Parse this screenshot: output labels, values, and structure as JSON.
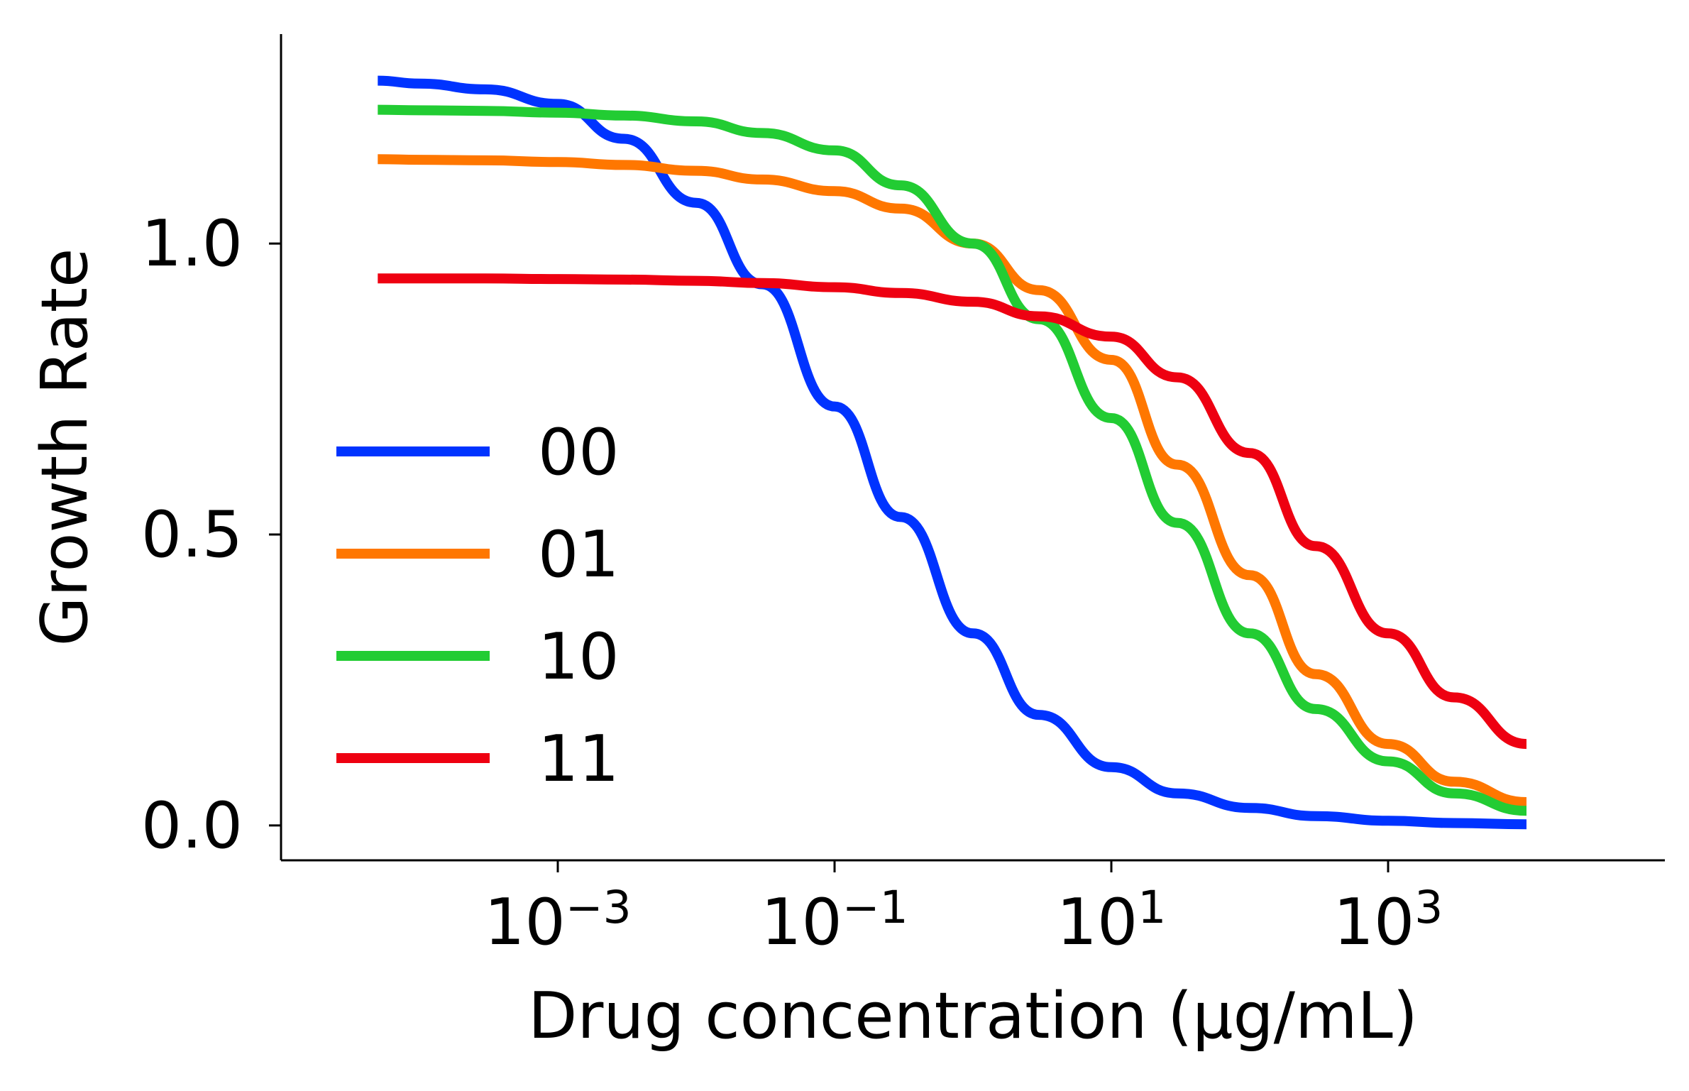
{
  "chart_data": {
    "type": "line",
    "title": "",
    "xlabel": "Drug concentration (μg/mL)",
    "ylabel": "Growth Rate",
    "xscale": "log",
    "xlim": [
      1e-05,
      100000
    ],
    "ylim": [
      -0.06,
      1.36
    ],
    "xticks": [
      {
        "base": "10",
        "exp": "−3",
        "value": 0.001
      },
      {
        "base": "10",
        "exp": "−1",
        "value": 0.1
      },
      {
        "base": "10",
        "exp": "1",
        "value": 10
      },
      {
        "base": "10",
        "exp": "3",
        "value": 1000
      }
    ],
    "yticks": [
      {
        "label": "0.0",
        "value": 0.0
      },
      {
        "label": "0.5",
        "value": 0.5
      },
      {
        "label": "1.0",
        "value": 1.0
      }
    ],
    "grid": false,
    "legend_position": "center-left",
    "x": [
      5e-05,
      0.0001,
      0.0003,
      0.001,
      0.003,
      0.01,
      0.03,
      0.1,
      0.3,
      1,
      3,
      10,
      30,
      100,
      300,
      1000,
      3000,
      10000
    ],
    "series": [
      {
        "name": "00",
        "color": "#0033ff",
        "values": [
          1.28,
          1.275,
          1.265,
          1.24,
          1.18,
          1.07,
          0.93,
          0.72,
          0.53,
          0.33,
          0.19,
          0.1,
          0.055,
          0.03,
          0.016,
          0.008,
          0.004,
          0.002
        ]
      },
      {
        "name": "01",
        "color": "#ff7700",
        "values": [
          1.145,
          1.144,
          1.143,
          1.14,
          1.135,
          1.125,
          1.11,
          1.09,
          1.06,
          1.0,
          0.92,
          0.8,
          0.62,
          0.43,
          0.26,
          0.14,
          0.075,
          0.04
        ]
      },
      {
        "name": "10",
        "color": "#22cc33",
        "values": [
          1.23,
          1.229,
          1.228,
          1.225,
          1.22,
          1.21,
          1.19,
          1.16,
          1.1,
          1.0,
          0.87,
          0.7,
          0.52,
          0.33,
          0.2,
          0.11,
          0.055,
          0.025
        ]
      },
      {
        "name": "11",
        "color": "#ee0011",
        "values": [
          0.94,
          0.94,
          0.94,
          0.939,
          0.938,
          0.936,
          0.932,
          0.925,
          0.915,
          0.9,
          0.875,
          0.84,
          0.77,
          0.64,
          0.48,
          0.33,
          0.22,
          0.14
        ]
      }
    ]
  }
}
